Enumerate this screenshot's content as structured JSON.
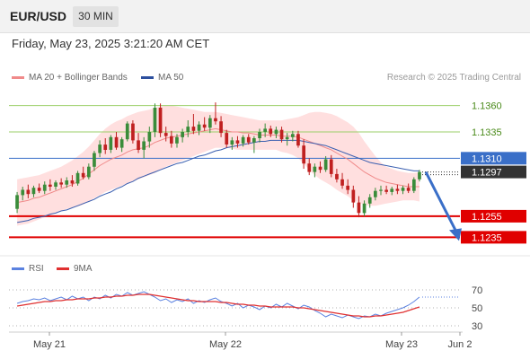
{
  "header": {
    "symbol": "EUR/USD",
    "timeframe": "30 MIN"
  },
  "datetime": "Friday, May 23, 2025 3:21:20 AM CET",
  "legend": {
    "ma20_label": "MA 20 + Bollinger Bands",
    "ma50_label": "MA 50",
    "credit": "Research © 2025 Trading Central",
    "rsi_label": "RSI",
    "ma9_label": "9MA"
  },
  "colors": {
    "bull": "#3a8c3a",
    "bear": "#c02020",
    "ma20": "#f08a8a",
    "ma50": "#3a5fb0",
    "bands": "#ffd9d9",
    "resistance": "#9bcf6a",
    "support": "#e00000",
    "pivot": "#3a6fc8",
    "price_tag": "#333333",
    "rsi": "#5b82e0",
    "rsi_ma": "#e03030"
  },
  "chart_data": [
    {
      "type": "candlestick",
      "title": "EUR/USD 30 MIN",
      "ylim": [
        1.122,
        1.1375
      ],
      "x_ticks": [
        "May 21",
        "May 22",
        "May 23",
        "Jun 2"
      ],
      "levels": [
        {
          "label": "1.1360",
          "value": 1.136,
          "kind": "resistance"
        },
        {
          "label": "1.1335",
          "value": 1.1335,
          "kind": "resistance"
        },
        {
          "label": "1.1310",
          "value": 1.131,
          "kind": "pivot"
        },
        {
          "label": "1.1255",
          "value": 1.1255,
          "kind": "support"
        },
        {
          "label": "1.1235",
          "value": 1.1235,
          "kind": "support"
        }
      ],
      "last_price": {
        "label": "1.1297",
        "value": 1.1297
      },
      "forecast": {
        "from": 1.1297,
        "to": 1.1235
      },
      "candles": [
        [
          1.1262,
          1.1278,
          1.1258,
          1.1275
        ],
        [
          1.1275,
          1.1283,
          1.127,
          1.128
        ],
        [
          1.128,
          1.1285,
          1.1272,
          1.1276
        ],
        [
          1.1276,
          1.1284,
          1.1273,
          1.1282
        ],
        [
          1.1282,
          1.1286,
          1.1277,
          1.1279
        ],
        [
          1.1279,
          1.1288,
          1.1276,
          1.1285
        ],
        [
          1.1285,
          1.129,
          1.1279,
          1.1283
        ],
        [
          1.1283,
          1.1289,
          1.128,
          1.1287
        ],
        [
          1.1287,
          1.1291,
          1.1282,
          1.1285
        ],
        [
          1.1285,
          1.1292,
          1.1282,
          1.1289
        ],
        [
          1.1289,
          1.1294,
          1.1283,
          1.1286
        ],
        [
          1.1286,
          1.1298,
          1.1284,
          1.1296
        ],
        [
          1.1296,
          1.1302,
          1.129,
          1.1292
        ],
        [
          1.1292,
          1.1305,
          1.129,
          1.1302
        ],
        [
          1.1302,
          1.1317,
          1.1298,
          1.1315
        ],
        [
          1.1315,
          1.1327,
          1.1311,
          1.1323
        ],
        [
          1.1323,
          1.1329,
          1.1314,
          1.1318
        ],
        [
          1.1318,
          1.1332,
          1.1315,
          1.133
        ],
        [
          1.133,
          1.1335,
          1.1318,
          1.132
        ],
        [
          1.132,
          1.133,
          1.1316,
          1.1328
        ],
        [
          1.1328,
          1.1345,
          1.1326,
          1.1343
        ],
        [
          1.1343,
          1.1346,
          1.1324,
          1.1327
        ],
        [
          1.1327,
          1.1334,
          1.1315,
          1.1318
        ],
        [
          1.1318,
          1.133,
          1.131,
          1.1326
        ],
        [
          1.1326,
          1.134,
          1.132,
          1.1335
        ],
        [
          1.1335,
          1.1362,
          1.133,
          1.1358
        ],
        [
          1.1358,
          1.1362,
          1.133,
          1.1334
        ],
        [
          1.1334,
          1.134,
          1.1326,
          1.1331
        ],
        [
          1.1331,
          1.1336,
          1.132,
          1.1324
        ],
        [
          1.1324,
          1.1333,
          1.132,
          1.133
        ],
        [
          1.133,
          1.1338,
          1.1325,
          1.1335
        ],
        [
          1.1335,
          1.1346,
          1.133,
          1.134
        ],
        [
          1.134,
          1.1352,
          1.1333,
          1.1336
        ],
        [
          1.1336,
          1.1345,
          1.1332,
          1.1342
        ],
        [
          1.1342,
          1.1349,
          1.1336,
          1.1339
        ],
        [
          1.1339,
          1.1351,
          1.1334,
          1.1348
        ],
        [
          1.1348,
          1.1363,
          1.1342,
          1.1345
        ],
        [
          1.1345,
          1.135,
          1.133,
          1.1334
        ],
        [
          1.1334,
          1.1337,
          1.132,
          1.1323
        ],
        [
          1.1323,
          1.133,
          1.1318,
          1.1327
        ],
        [
          1.1327,
          1.1331,
          1.132,
          1.1324
        ],
        [
          1.1324,
          1.1332,
          1.1321,
          1.133
        ],
        [
          1.133,
          1.1333,
          1.1323,
          1.1325
        ],
        [
          1.1325,
          1.1331,
          1.1315,
          1.1329
        ],
        [
          1.1329,
          1.1338,
          1.1325,
          1.1335
        ],
        [
          1.1335,
          1.1343,
          1.133,
          1.1338
        ],
        [
          1.1338,
          1.1341,
          1.133,
          1.1333
        ],
        [
          1.1333,
          1.134,
          1.1329,
          1.1337
        ],
        [
          1.1337,
          1.134,
          1.1325,
          1.1328
        ],
        [
          1.1328,
          1.1334,
          1.1322,
          1.133
        ],
        [
          1.133,
          1.1336,
          1.1326,
          1.1333
        ],
        [
          1.1333,
          1.1336,
          1.132,
          1.1322
        ],
        [
          1.1322,
          1.1328,
          1.13,
          1.1305
        ],
        [
          1.1305,
          1.131,
          1.1294,
          1.1297
        ],
        [
          1.1297,
          1.1305,
          1.1292,
          1.1302
        ],
        [
          1.1302,
          1.1307,
          1.1296,
          1.1299
        ],
        [
          1.1299,
          1.1312,
          1.1297,
          1.1309
        ],
        [
          1.1309,
          1.1313,
          1.1292,
          1.1295
        ],
        [
          1.1295,
          1.13,
          1.1287,
          1.129
        ],
        [
          1.129,
          1.1296,
          1.1281,
          1.1284
        ],
        [
          1.1284,
          1.129,
          1.1276,
          1.128
        ],
        [
          1.128,
          1.1284,
          1.1263,
          1.1268
        ],
        [
          1.1268,
          1.1274,
          1.1254,
          1.1258
        ],
        [
          1.1258,
          1.127,
          1.1255,
          1.1267
        ],
        [
          1.1267,
          1.1276,
          1.1263,
          1.1273
        ],
        [
          1.1273,
          1.1282,
          1.127,
          1.1279
        ],
        [
          1.1279,
          1.1284,
          1.1275,
          1.128
        ],
        [
          1.128,
          1.1284,
          1.1276,
          1.1278
        ],
        [
          1.1278,
          1.1283,
          1.1275,
          1.1281
        ],
        [
          1.1281,
          1.1285,
          1.1276,
          1.1279
        ],
        [
          1.1279,
          1.1284,
          1.1276,
          1.1282
        ],
        [
          1.1282,
          1.1286,
          1.1277,
          1.1279
        ],
        [
          1.1279,
          1.1292,
          1.1277,
          1.129
        ],
        [
          1.129,
          1.1299,
          1.1288,
          1.1297
        ]
      ],
      "ma20": [
        1.1268,
        1.1269,
        1.127,
        1.1272,
        1.1273,
        1.1275,
        1.1277,
        1.1279,
        1.1281,
        1.1283,
        1.1285,
        1.1288,
        1.1291,
        1.1295,
        1.1299,
        1.1303,
        1.1306,
        1.1309,
        1.1311,
        1.1313,
        1.1316,
        1.1318,
        1.1319,
        1.132,
        1.1322,
        1.1325,
        1.1327,
        1.1329,
        1.133,
        1.1331,
        1.1332,
        1.1333,
        1.1334,
        1.1335,
        1.1336,
        1.1337,
        1.1338,
        1.1337,
        1.1336,
        1.1335,
        1.1335,
        1.1334,
        1.1334,
        1.1333,
        1.1332,
        1.1332,
        1.1332,
        1.1332,
        1.1331,
        1.1331,
        1.1331,
        1.133,
        1.1328,
        1.1326,
        1.1324,
        1.1322,
        1.132,
        1.1318,
        1.1315,
        1.1312,
        1.1309,
        1.1305,
        1.1301,
        1.1297,
        1.1294,
        1.1291,
        1.1289,
        1.1287,
        1.1286,
        1.1285,
        1.1284,
        1.1283,
        1.1283,
        1.1283
      ],
      "bb_upper": [
        1.129,
        1.1291,
        1.1292,
        1.1293,
        1.1294,
        1.1296,
        1.1298,
        1.13,
        1.1302,
        1.1305,
        1.1308,
        1.1312,
        1.1316,
        1.1321,
        1.1327,
        1.1333,
        1.1338,
        1.1342,
        1.1345,
        1.1347,
        1.135,
        1.1352,
        1.1354,
        1.1355,
        1.1356,
        1.1358,
        1.1359,
        1.136,
        1.136,
        1.1359,
        1.1358,
        1.1357,
        1.1356,
        1.1355,
        1.1354,
        1.1354,
        1.1354,
        1.1353,
        1.1352,
        1.1351,
        1.135,
        1.1349,
        1.1348,
        1.1347,
        1.1346,
        1.1346,
        1.1346,
        1.1346,
        1.1346,
        1.1347,
        1.1348,
        1.1349,
        1.1351,
        1.1353,
        1.1354,
        1.1354,
        1.1353,
        1.1352,
        1.135,
        1.1347,
        1.1344,
        1.134,
        1.1334,
        1.1326,
        1.1319,
        1.1312,
        1.1306,
        1.1302,
        1.13,
        1.1298,
        1.1297,
        1.1296,
        1.1296,
        1.1297
      ],
      "bb_lower": [
        1.1246,
        1.1247,
        1.1248,
        1.125,
        1.1252,
        1.1254,
        1.1256,
        1.1258,
        1.126,
        1.1262,
        1.1263,
        1.1264,
        1.1266,
        1.1269,
        1.1272,
        1.1275,
        1.1278,
        1.128,
        1.1282,
        1.1284,
        1.1286,
        1.1288,
        1.129,
        1.1292,
        1.1294,
        1.1296,
        1.1299,
        1.1302,
        1.1304,
        1.1306,
        1.1308,
        1.131,
        1.1312,
        1.1314,
        1.1316,
        1.1318,
        1.132,
        1.132,
        1.132,
        1.1319,
        1.1318,
        1.1318,
        1.1318,
        1.1318,
        1.1318,
        1.1318,
        1.1318,
        1.1318,
        1.1316,
        1.1315,
        1.1313,
        1.131,
        1.1305,
        1.1299,
        1.1294,
        1.129,
        1.1287,
        1.1284,
        1.128,
        1.1277,
        1.1274,
        1.127,
        1.1268,
        1.1266,
        1.1265,
        1.1265,
        1.1266,
        1.1267,
        1.1268,
        1.1269,
        1.127,
        1.127,
        1.127,
        1.1269
      ],
      "ma50": [
        1.1249,
        1.125,
        1.1251,
        1.1253,
        1.1254,
        1.1255,
        1.1257,
        1.1258,
        1.126,
        1.1261,
        1.1263,
        1.1265,
        1.1267,
        1.1269,
        1.1271,
        1.1274,
        1.1276,
        1.1278,
        1.1281,
        1.1283,
        1.1286,
        1.1288,
        1.1291,
        1.1293,
        1.1295,
        1.1297,
        1.1299,
        1.1301,
        1.1303,
        1.1305,
        1.1306,
        1.1308,
        1.131,
        1.1312,
        1.1313,
        1.1315,
        1.1317,
        1.1318,
        1.132,
        1.1321,
        1.1322,
        1.1323,
        1.1324,
        1.1325,
        1.1326,
        1.1326,
        1.1327,
        1.1327,
        1.1327,
        1.1327,
        1.1327,
        1.1327,
        1.1326,
        1.1325,
        1.1324,
        1.1323,
        1.1322,
        1.132,
        1.1318,
        1.1316,
        1.1314,
        1.1312,
        1.131,
        1.1308,
        1.1306,
        1.1305,
        1.1304,
        1.1303,
        1.1302,
        1.1301,
        1.13,
        1.1299,
        1.1298,
        1.1298
      ]
    },
    {
      "type": "line",
      "title": "RSI",
      "ylim": [
        25,
        80
      ],
      "y_ticks": [
        70,
        50,
        30
      ],
      "last_rsi": 62,
      "series": [
        {
          "name": "RSI",
          "values": [
            55,
            57,
            58,
            60,
            59,
            61,
            58,
            60,
            62,
            59,
            63,
            60,
            62,
            58,
            62,
            60,
            64,
            61,
            65,
            63,
            67,
            64,
            66,
            68,
            65,
            62,
            58,
            60,
            56,
            59,
            57,
            60,
            55,
            58,
            56,
            59,
            61,
            57,
            55,
            52,
            55,
            50,
            53,
            51,
            48,
            52,
            50,
            54,
            51,
            55,
            52,
            49,
            53,
            51,
            47,
            44,
            40,
            43,
            41,
            39,
            42,
            40,
            38,
            41,
            40,
            43,
            41,
            44,
            46,
            48,
            50,
            53,
            57,
            62
          ]
        },
        {
          "name": "9MA",
          "values": [
            52,
            53,
            54,
            55,
            56,
            57,
            57,
            58,
            58,
            59,
            59,
            60,
            60,
            60,
            61,
            61,
            62,
            62,
            63,
            63,
            64,
            64,
            65,
            65,
            65,
            64,
            63,
            62,
            61,
            60,
            59,
            58,
            58,
            57,
            57,
            57,
            57,
            56,
            56,
            55,
            54,
            54,
            53,
            53,
            52,
            52,
            51,
            51,
            51,
            51,
            51,
            50,
            50,
            49,
            48,
            47,
            46,
            45,
            44,
            43,
            42,
            41,
            41,
            40,
            40,
            41,
            41,
            42,
            43,
            44,
            45,
            47,
            49,
            51
          ]
        }
      ]
    }
  ]
}
